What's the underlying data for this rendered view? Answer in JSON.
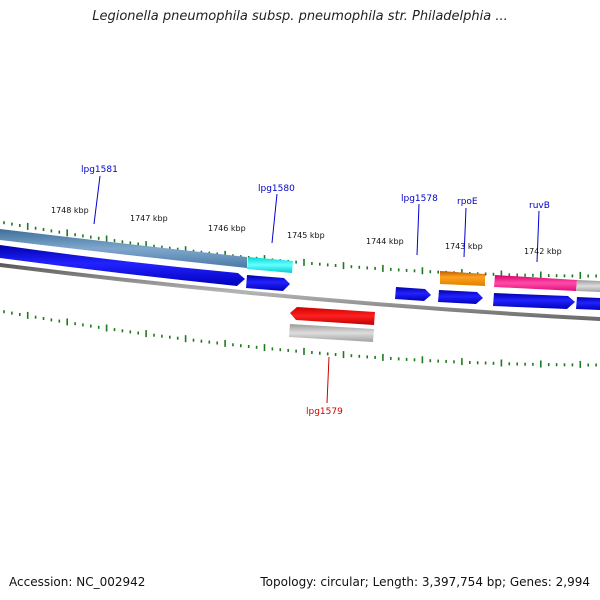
{
  "title": "Legionella pneumophila subsp. pneumophila str. Philadelphia ...",
  "footer": {
    "accession": "Accession: NC_002942",
    "summary": "Topology: circular; Length: 3,397,754 bp; Genes: 2,994"
  },
  "colors": {
    "backbone": "#777777",
    "ticks": "#1e7a1e",
    "forward_gene": "#0000ee",
    "label_blue": "#0000cc",
    "label_red": "#cc0000"
  },
  "scale_labels": [
    "1748 kbp",
    "1747 kbp",
    "1746 kbp",
    "1745 kbp",
    "1744 kbp",
    "1743 kbp",
    "1742 kbp"
  ],
  "gene_labels": [
    {
      "name": "lpg1581",
      "color": "#0000cc"
    },
    {
      "name": "lpg1580",
      "color": "#0000cc"
    },
    {
      "name": "lpg1578",
      "color": "#0000cc"
    },
    {
      "name": "rpoE",
      "color": "#0000cc"
    },
    {
      "name": "ruvB",
      "color": "#0000cc"
    },
    {
      "name": "lpg1579",
      "color": "#cc0000"
    }
  ]
}
